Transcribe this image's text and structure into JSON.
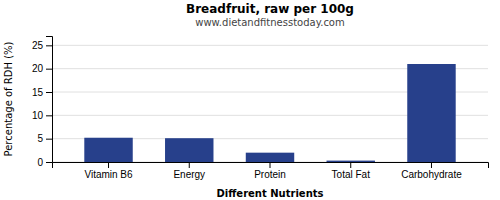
{
  "chart_data": {
    "type": "bar",
    "title": "Breadfruit, raw per 100g",
    "subtitle": "www.dietandfitnesstoday.com",
    "xlabel": "Different Nutrients",
    "ylabel": "Percentage of RDH (%)",
    "categories": [
      "Vitamin B6",
      "Energy",
      "Protein",
      "Total Fat",
      "Carbohydrate"
    ],
    "values": [
      5.2,
      5.1,
      2.0,
      0.3,
      21.0
    ],
    "color": "#27408B",
    "ylim": [
      0,
      27
    ],
    "yticks": [
      0,
      5,
      10,
      15,
      20,
      25
    ],
    "grid": true
  }
}
